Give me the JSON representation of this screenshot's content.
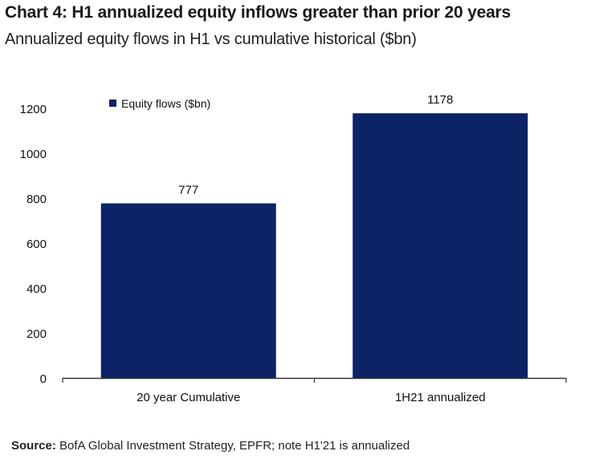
{
  "title": "Chart 4: H1 annualized equity inflows greater than prior 20 years",
  "subtitle": "Annualized equity flows in H1 vs cumulative historical ($bn)",
  "source": {
    "label": "Source:",
    "text": "BofA Global Investment Strategy, EPFR; note H1'21 is annualized"
  },
  "colors": {
    "bar": "#0c2366",
    "axis": "#333333",
    "text": "#111111"
  },
  "chart_data": {
    "type": "bar",
    "categories": [
      "20 year Cumulative",
      "1H21 annualized"
    ],
    "series": [
      {
        "name": "Equity flows ($bn)",
        "values": [
          777,
          1178
        ]
      }
    ],
    "data_labels": [
      "777",
      "1178"
    ],
    "ylim": [
      0,
      1200
    ],
    "yticks": [
      0,
      200,
      400,
      600,
      800,
      1000,
      1200
    ],
    "grid": false,
    "legend_position": "top-left"
  }
}
